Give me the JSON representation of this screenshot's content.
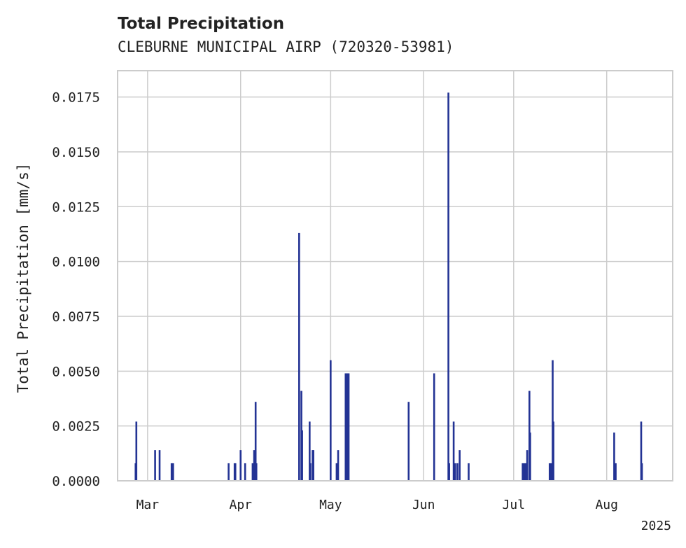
{
  "chart_data": {
    "type": "bar",
    "title": "Total Precipitation",
    "subtitle": "CLEBURNE MUNICIPAL AIRP (720320-53981)",
    "ylabel": "Total Precipitation [mm/s]",
    "xlabel": "",
    "x_offset_label": "2025",
    "ylim": [
      0,
      0.0187
    ],
    "xlim": [
      "2025-02-19",
      "2025-08-23"
    ],
    "grid": true,
    "bar_color": "#233394",
    "y_ticks": [
      "0.0000",
      "0.0025",
      "0.0050",
      "0.0075",
      "0.0100",
      "0.0125",
      "0.0150",
      "0.0175"
    ],
    "y_tick_values": [
      0,
      0.0025,
      0.005,
      0.0075,
      0.01,
      0.0125,
      0.015,
      0.0175
    ],
    "x_ticks": [
      {
        "date": "2025-03-01",
        "label": "Mar"
      },
      {
        "date": "2025-04-01",
        "label": "Apr"
      },
      {
        "date": "2025-05-01",
        "label": "May"
      },
      {
        "date": "2025-06-01",
        "label": "Jun"
      },
      {
        "date": "2025-07-01",
        "label": "Jul"
      },
      {
        "date": "2025-08-01",
        "label": "Aug"
      }
    ],
    "series": [
      {
        "x": [
          "2025-02-25T00:00",
          "2025-02-25T06:00",
          "2025-03-03T12:00",
          "2025-03-05T00:00",
          "2025-03-09T00:00",
          "2025-03-09T12:00",
          "2025-03-28T00:00",
          "2025-03-30T00:00",
          "2025-03-30T06:00",
          "2025-04-01T00:00",
          "2025-04-02T12:00",
          "2025-04-05T00:00",
          "2025-04-05T12:00",
          "2025-04-06T00:00",
          "2025-04-06T06:00",
          "2025-04-20T12:00",
          "2025-04-21T06:00",
          "2025-04-21T12:00",
          "2025-04-24T00:00",
          "2025-04-24T06:00",
          "2025-04-25T00:00",
          "2025-04-25T06:00",
          "2025-05-01T00:00",
          "2025-05-03T00:00",
          "2025-05-03T12:00",
          "2025-05-06T00:00",
          "2025-05-06T12:00",
          "2025-05-07T00:00",
          "2025-05-27T00:00",
          "2025-06-04T12:00",
          "2025-06-09T06:00",
          "2025-06-09T12:00",
          "2025-06-11T00:00",
          "2025-06-11T12:00",
          "2025-06-12T06:00",
          "2025-06-13T00:00",
          "2025-06-16T00:00",
          "2025-07-04T00:00",
          "2025-07-04T12:00",
          "2025-07-05T00:00",
          "2025-07-05T12:00",
          "2025-07-06T06:00",
          "2025-07-06T12:00",
          "2025-07-13T00:00",
          "2025-07-13T12:00",
          "2025-07-14T00:00",
          "2025-07-14T06:00",
          "2025-08-03T12:00",
          "2025-08-04T00:00",
          "2025-08-12T12:00",
          "2025-08-12T18:00"
        ],
        "values": [
          0.0008,
          0.0027,
          0.0014,
          0.0014,
          0.0008,
          0.0008,
          0.0008,
          0.0008,
          0.0008,
          0.0014,
          0.0008,
          0.0008,
          0.0014,
          0.0036,
          0.0008,
          0.0113,
          0.0041,
          0.0023,
          0.0027,
          0.0008,
          0.0014,
          0.0014,
          0.0055,
          0.0008,
          0.0014,
          0.0049,
          0.0049,
          0.0049,
          0.0036,
          0.0049,
          0.0177,
          0.0008,
          0.0027,
          0.0008,
          0.0008,
          0.0014,
          0.0008,
          0.0008,
          0.0008,
          0.0008,
          0.0014,
          0.0041,
          0.0022,
          0.0008,
          0.0008,
          0.0055,
          0.0027,
          0.0022,
          0.0008,
          0.0027,
          0.0008
        ]
      }
    ]
  }
}
